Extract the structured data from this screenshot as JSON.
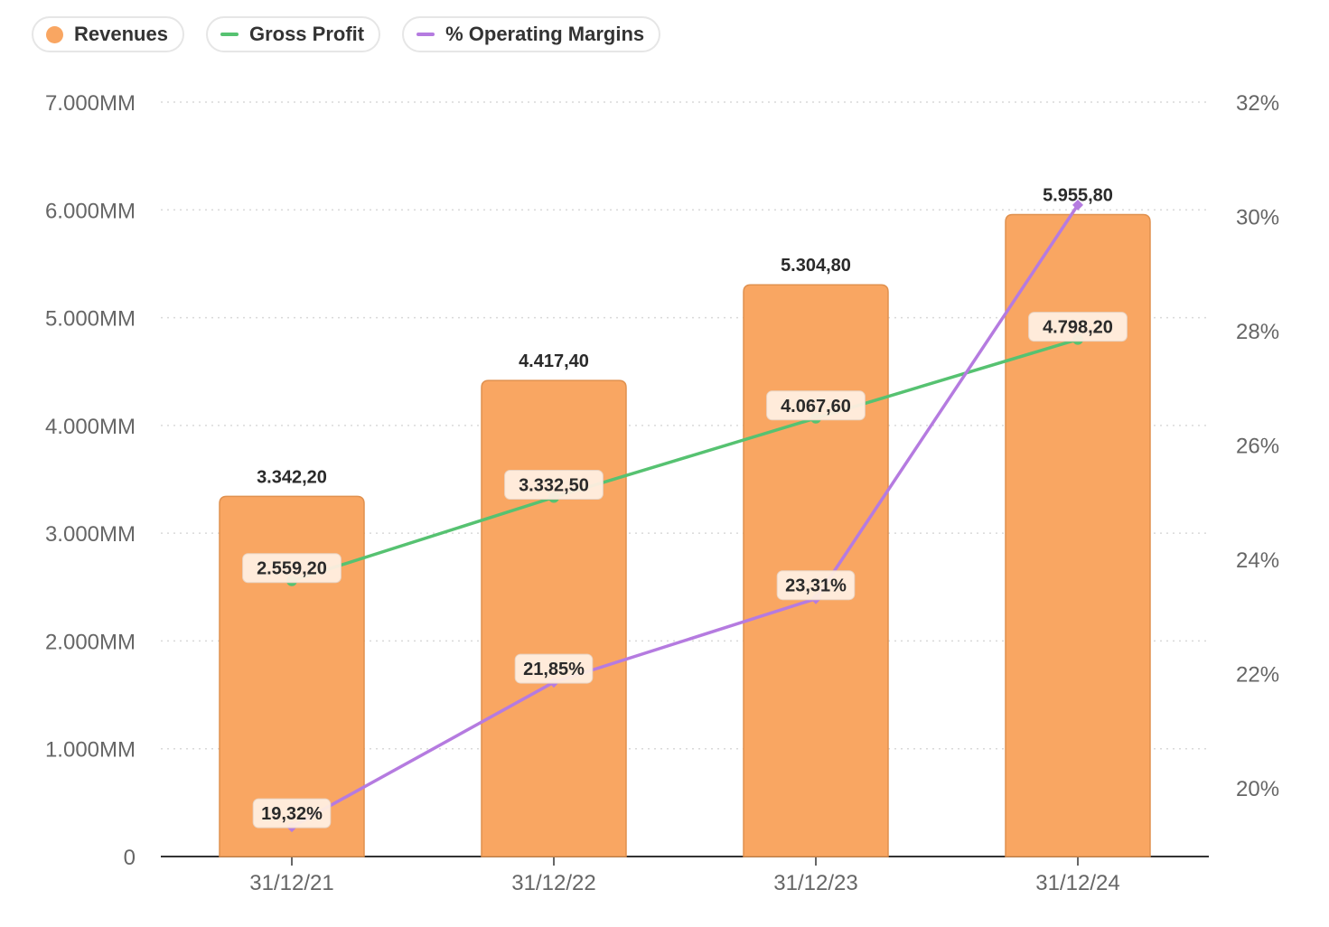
{
  "legend": [
    {
      "label": "Revenues",
      "color": "#f9a662",
      "kind": "dot"
    },
    {
      "label": "Gross Profit",
      "color": "#56c271",
      "kind": "line"
    },
    {
      "label": "% Operating Margins",
      "color": "#b57be0",
      "kind": "line"
    }
  ],
  "chart_data": {
    "type": "bar",
    "categories": [
      "31/12/21",
      "31/12/22",
      "31/12/23",
      "31/12/24"
    ],
    "series": [
      {
        "name": "Revenues",
        "type": "bar",
        "axis": "left",
        "color": "#f9a662",
        "values": [
          3342.2,
          4417.4,
          5304.8,
          5955.8
        ],
        "labels": [
          "3.342,20",
          "4.417,40",
          "5.304,80",
          "5.955,80"
        ]
      },
      {
        "name": "Gross Profit",
        "type": "line",
        "axis": "left",
        "color": "#56c271",
        "values": [
          2559.2,
          3332.5,
          4067.6,
          4798.2
        ],
        "labels": [
          "2.559,20",
          "3.332,50",
          "4.067,60",
          "4.798,20"
        ]
      },
      {
        "name": "% Operating Margins",
        "type": "line",
        "axis": "right",
        "color": "#b57be0",
        "values": [
          19.32,
          21.85,
          23.31,
          30.2
        ],
        "labels": [
          "19,32%",
          "21,85%",
          "23,31%",
          ""
        ]
      }
    ],
    "y_left": {
      "ylim": [
        0,
        7000
      ],
      "ticks": [
        0,
        1000,
        2000,
        3000,
        4000,
        5000,
        6000,
        7000
      ],
      "tick_labels": [
        "0",
        "1.000MM",
        "2.000MM",
        "3.000MM",
        "4.000MM",
        "5.000MM",
        "6.000MM",
        "7.000MM"
      ]
    },
    "y_right": {
      "ylim": [
        18.8,
        32
      ],
      "ticks": [
        20,
        22,
        24,
        26,
        28,
        30,
        32
      ],
      "tick_labels": [
        "20%",
        "22%",
        "24%",
        "26%",
        "28%",
        "30%",
        "32%"
      ]
    },
    "grid": true,
    "legend_position": "top-left"
  }
}
